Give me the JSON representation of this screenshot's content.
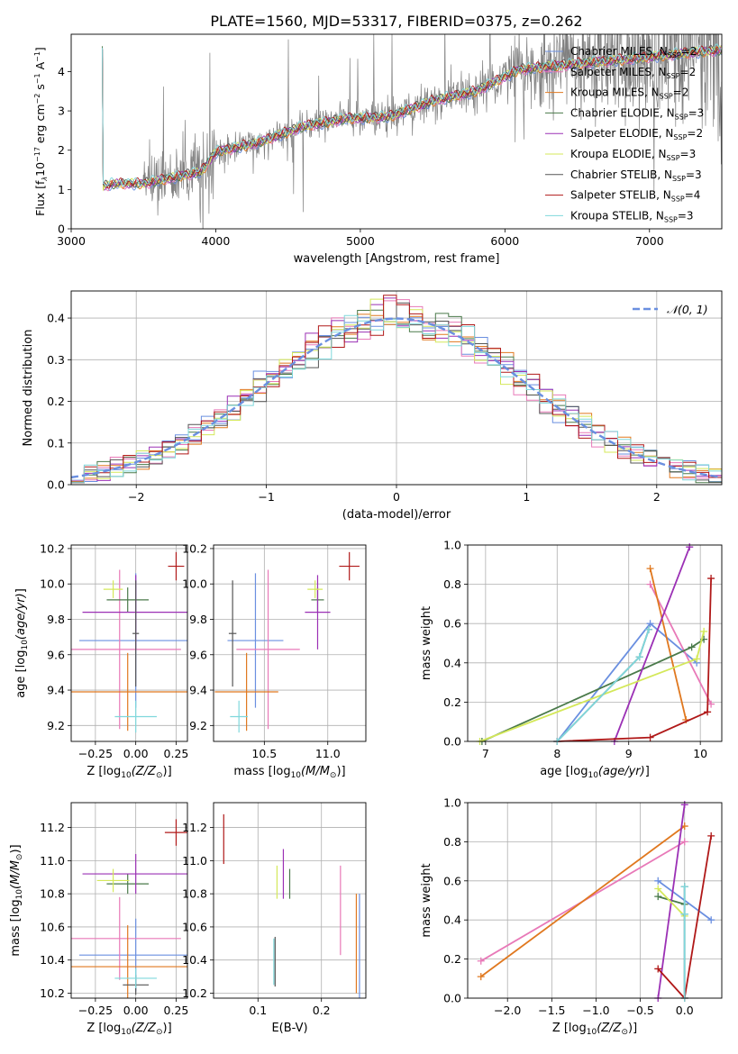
{
  "figure": {
    "title": "PLATE=1560, MJD=53317, FIBERID=0375, z=0.262"
  },
  "colors": {
    "Chabrier MILES": "#6a8fe0",
    "Salpeter MILES": "#e879b8",
    "Kroupa MILES": "#e0781f",
    "Chabrier ELODIE": "#4a7a4a",
    "Salpeter ELODIE": "#9b30b5",
    "Kroupa ELODIE": "#d4e85a",
    "Chabrier STELIB": "#555555",
    "Salpeter STELIB": "#b01818",
    "Kroupa STELIB": "#7fd8dc",
    "data": "#808080",
    "normal": "#6a8fe0"
  },
  "chart_data": [
    {
      "id": "spectrum",
      "type": "line",
      "xlabel": "wavelength [Angstrom, rest frame]",
      "ylabel": "Flux [f_λ 10^-17 erg cm^-2 s^-1 A^-1]",
      "xlim": [
        3000,
        7500
      ],
      "ylim": [
        0,
        4.95
      ],
      "xticks": [
        3000,
        4000,
        5000,
        6000,
        7000
      ],
      "yticks": [
        0,
        1,
        2,
        3,
        4
      ],
      "legend_position": "upper right",
      "legend": [
        {
          "label": "Chabrier MILES, N",
          "sub": "SSP",
          "n": "=2"
        },
        {
          "label": "Salpeter MILES, N",
          "sub": "SSP",
          "n": "=2"
        },
        {
          "label": "Kroupa MILES, N",
          "sub": "SSP",
          "n": "=2"
        },
        {
          "label": "Chabrier ELODIE, N",
          "sub": "SSP",
          "n": "=3"
        },
        {
          "label": "Salpeter ELODIE, N",
          "sub": "SSP",
          "n": "=2"
        },
        {
          "label": "Kroupa ELODIE, N",
          "sub": "SSP",
          "n": "=3"
        },
        {
          "label": "Chabrier STELIB, N",
          "sub": "SSP",
          "n": "=3"
        },
        {
          "label": "Salpeter STELIB, N",
          "sub": "SSP",
          "n": "=4"
        },
        {
          "label": "Kroupa STELIB, N",
          "sub": "SSP",
          "n": "=3"
        }
      ],
      "continuum": [
        [
          3220,
          1.08
        ],
        [
          3300,
          1.15
        ],
        [
          3500,
          1.15
        ],
        [
          3700,
          1.3
        ],
        [
          3900,
          1.45
        ],
        [
          4000,
          1.95
        ],
        [
          4300,
          2.2
        ],
        [
          4600,
          2.6
        ],
        [
          4900,
          2.8
        ],
        [
          5200,
          2.85
        ],
        [
          5500,
          3.25
        ],
        [
          5800,
          3.5
        ],
        [
          6100,
          4.05
        ],
        [
          6500,
          4.2
        ],
        [
          6800,
          4.3
        ],
        [
          7200,
          4.45
        ],
        [
          7500,
          4.55
        ]
      ]
    },
    {
      "id": "residuals",
      "type": "line",
      "xlabel": "(data-model)/error",
      "ylabel": "Normed distribution",
      "xlim": [
        -2.5,
        2.5
      ],
      "ylim": [
        0,
        0.465
      ],
      "xticks": [
        -2,
        -1,
        0,
        1,
        2
      ],
      "yticks": [
        0.0,
        0.1,
        0.2,
        0.3,
        0.4
      ],
      "legend": "𝒩(0, 1)",
      "legend_position": "upper right"
    },
    {
      "id": "age_vs_Z",
      "type": "scatter",
      "xlabel": "Z [log₁₀(Z/Z☉)]",
      "ylabel": "age  [log₁₀(age/yr)]",
      "xlim": [
        -0.4,
        0.32
      ],
      "ylim": [
        9.11,
        10.22
      ],
      "xticks": [
        -0.25,
        0.0,
        0.25
      ],
      "yticks": [
        9.2,
        9.4,
        9.6,
        9.8,
        10.0,
        10.2
      ],
      "points": [
        {
          "series": "Chabrier MILES",
          "x": 0.0,
          "xerr": 0.35,
          "y": 9.68,
          "yerr": 0.38
        },
        {
          "series": "Salpeter MILES",
          "x": -0.1,
          "xerr": 0.38,
          "y": 9.63,
          "yerr": 0.45
        },
        {
          "series": "Kroupa MILES",
          "x": -0.05,
          "xerr": 0.37,
          "y": 9.39,
          "yerr": 0.22
        },
        {
          "series": "Chabrier ELODIE",
          "x": -0.05,
          "xerr": 0.13,
          "y": 9.91,
          "yerr": 0.07
        },
        {
          "series": "Salpeter ELODIE",
          "x": 0.0,
          "xerr": 0.33,
          "y": 9.84,
          "yerr": 0.21
        },
        {
          "series": "Kroupa ELODIE",
          "x": -0.14,
          "xerr": 0.06,
          "y": 9.97,
          "yerr": 0.05
        },
        {
          "series": "Chabrier STELIB",
          "x": 0.0,
          "xerr": 0.02,
          "y": 9.72,
          "yerr": 0.3
        },
        {
          "series": "Salpeter STELIB",
          "x": 0.25,
          "xerr": 0.05,
          "y": 10.1,
          "yerr": 0.08
        },
        {
          "series": "Kroupa STELIB",
          "x": 0.0,
          "xerr": 0.13,
          "y": 9.25,
          "yerr": 0.09
        }
      ]
    },
    {
      "id": "age_vs_mass",
      "type": "scatter",
      "xlabel": "mass [log₁₀(M/M☉)]",
      "xlim": [
        10.1,
        11.3
      ],
      "ylim": [
        9.11,
        10.22
      ],
      "xticks": [
        10.5,
        11.0
      ],
      "yticks": [
        9.2,
        9.4,
        9.6,
        9.8,
        10.0,
        10.2
      ],
      "points": [
        {
          "series": "Chabrier MILES",
          "x": 10.43,
          "xerr": 0.22,
          "y": 9.68,
          "yerr": 0.38
        },
        {
          "series": "Salpeter MILES",
          "x": 10.53,
          "xerr": 0.25,
          "y": 9.63,
          "yerr": 0.45
        },
        {
          "series": "Kroupa MILES",
          "x": 10.36,
          "xerr": 0.25,
          "y": 9.39,
          "yerr": 0.22
        },
        {
          "series": "Chabrier ELODIE",
          "x": 10.92,
          "xerr": 0.05,
          "y": 9.91,
          "yerr": 0.07
        },
        {
          "series": "Salpeter ELODIE",
          "x": 10.92,
          "xerr": 0.1,
          "y": 9.84,
          "yerr": 0.21
        },
        {
          "series": "Kroupa ELODIE",
          "x": 10.9,
          "xerr": 0.06,
          "y": 9.97,
          "yerr": 0.05
        },
        {
          "series": "Chabrier STELIB",
          "x": 10.25,
          "xerr": 0.03,
          "y": 9.72,
          "yerr": 0.3
        },
        {
          "series": "Salpeter STELIB",
          "x": 11.17,
          "xerr": 0.08,
          "y": 10.1,
          "yerr": 0.08
        },
        {
          "series": "Kroupa STELIB",
          "x": 10.3,
          "xerr": 0.07,
          "y": 9.25,
          "yerr": 0.09
        }
      ]
    },
    {
      "id": "weight_vs_age",
      "type": "line",
      "xlabel": "age  [log₁₀(age/yr)]",
      "ylabel": "mass weight",
      "xlim": [
        6.75,
        10.3
      ],
      "ylim": [
        0,
        1
      ],
      "xticks": [
        7,
        8,
        9,
        10
      ],
      "yticks": [
        0.0,
        0.2,
        0.4,
        0.6,
        0.8,
        1.0
      ],
      "series": [
        {
          "name": "Chabrier MILES",
          "x": [
            8.0,
            9.3,
            9.95
          ],
          "y": [
            0.0,
            0.6,
            0.4
          ]
        },
        {
          "name": "Salpeter MILES",
          "x": [
            9.3,
            10.15
          ],
          "y": [
            0.8,
            0.19
          ]
        },
        {
          "name": "Kroupa MILES",
          "x": [
            9.3,
            9.8
          ],
          "y": [
            0.88,
            0.11
          ]
        },
        {
          "name": "Chabrier ELODIE",
          "x": [
            6.95,
            9.88,
            10.05
          ],
          "y": [
            0.0,
            0.48,
            0.52
          ]
        },
        {
          "name": "Salpeter ELODIE",
          "x": [
            8.8,
            9.85
          ],
          "y": [
            0.0,
            0.99
          ]
        },
        {
          "name": "Kroupa ELODIE",
          "x": [
            6.92,
            9.95,
            10.05
          ],
          "y": [
            0.0,
            0.42,
            0.56
          ]
        },
        {
          "name": "Chabrier STELIB",
          "x": [
            8.0,
            9.15,
            9.28
          ],
          "y": [
            0.0,
            0.43,
            0.57
          ]
        },
        {
          "name": "Salpeter STELIB",
          "x": [
            8.0,
            9.3,
            10.1,
            10.15
          ],
          "y": [
            0.0,
            0.02,
            0.15,
            0.83
          ]
        },
        {
          "name": "Kroupa STELIB",
          "x": [
            8.0,
            9.15,
            9.28
          ],
          "y": [
            0.0,
            0.43,
            0.57
          ]
        }
      ]
    },
    {
      "id": "mass_vs_Z",
      "type": "scatter",
      "xlabel": "Z [log₁₀(Z/Z☉)]",
      "ylabel": "mass [log₁₀(M/M☉)]",
      "xlim": [
        -0.4,
        0.32
      ],
      "ylim": [
        10.17,
        11.35
      ],
      "xticks": [
        -0.25,
        0.0,
        0.25
      ],
      "yticks": [
        10.2,
        10.4,
        10.6,
        10.8,
        11.0,
        11.2
      ],
      "points": [
        {
          "series": "Chabrier MILES",
          "x": 0.0,
          "xerr": 0.35,
          "y": 10.43,
          "yerr": 0.22
        },
        {
          "series": "Salpeter MILES",
          "x": -0.1,
          "xerr": 0.38,
          "y": 10.53,
          "yerr": 0.25
        },
        {
          "series": "Kroupa MILES",
          "x": -0.05,
          "xerr": 0.37,
          "y": 10.36,
          "yerr": 0.25
        },
        {
          "series": "Chabrier ELODIE",
          "x": -0.05,
          "xerr": 0.13,
          "y": 10.86,
          "yerr": 0.06
        },
        {
          "series": "Salpeter ELODIE",
          "x": 0.0,
          "xerr": 0.33,
          "y": 10.92,
          "yerr": 0.12
        },
        {
          "series": "Kroupa ELODIE",
          "x": -0.14,
          "xerr": 0.1,
          "y": 10.88,
          "yerr": 0.07
        },
        {
          "series": "Chabrier STELIB",
          "x": 0.0,
          "xerr": 0.08,
          "y": 10.25,
          "yerr": 0.06
        },
        {
          "series": "Salpeter STELIB",
          "x": 0.25,
          "xerr": 0.07,
          "y": 11.17,
          "yerr": 0.08
        },
        {
          "series": "Kroupa STELIB",
          "x": 0.0,
          "xerr": 0.13,
          "y": 10.29,
          "yerr": 0.06
        }
      ]
    },
    {
      "id": "mass_vs_EBV",
      "type": "scatter",
      "xlabel": "E(B-V)",
      "xlim": [
        0.03,
        0.27
      ],
      "ylim": [
        10.17,
        11.35
      ],
      "xticks": [
        0.1,
        0.2
      ],
      "yticks": [
        10.2,
        10.4,
        10.6,
        10.8,
        11.0,
        11.2
      ],
      "points": [
        {
          "series": "Chabrier MILES",
          "x": 0.26,
          "y": 10.45,
          "yerr": 0.35
        },
        {
          "series": "Salpeter MILES",
          "x": 0.23,
          "y": 10.7,
          "yerr": 0.27
        },
        {
          "series": "Kroupa MILES",
          "x": 0.255,
          "y": 10.5,
          "yerr": 0.3
        },
        {
          "series": "Chabrier ELODIE",
          "x": 0.15,
          "y": 10.86,
          "yerr": 0.09
        },
        {
          "series": "Salpeter ELODIE",
          "x": 0.14,
          "y": 10.92,
          "yerr": 0.15
        },
        {
          "series": "Kroupa ELODIE",
          "x": 0.13,
          "y": 10.87,
          "yerr": 0.1
        },
        {
          "series": "Chabrier STELIB",
          "x": 0.127,
          "y": 10.39,
          "yerr": 0.15
        },
        {
          "series": "Salpeter STELIB",
          "x": 0.046,
          "y": 11.13,
          "yerr": 0.15
        },
        {
          "series": "Kroupa STELIB",
          "x": 0.125,
          "y": 10.39,
          "yerr": 0.14
        }
      ]
    },
    {
      "id": "weight_vs_Z",
      "type": "line",
      "xlabel": "Z [log₁₀(Z/Z☉)]",
      "ylabel": "mass weight",
      "xlim": [
        -2.45,
        0.42
      ],
      "ylim": [
        0,
        1
      ],
      "xticks": [
        -2.0,
        -1.5,
        -1.0,
        -0.5,
        0.0
      ],
      "yticks": [
        0.0,
        0.2,
        0.4,
        0.6,
        0.8,
        1.0
      ],
      "series": [
        {
          "name": "Chabrier MILES",
          "x": [
            -0.3,
            0.3
          ],
          "y": [
            0.6,
            0.4
          ]
        },
        {
          "name": "Salpeter MILES",
          "x": [
            -2.3,
            0.0
          ],
          "y": [
            0.19,
            0.8
          ]
        },
        {
          "name": "Kroupa MILES",
          "x": [
            -2.3,
            0.0
          ],
          "y": [
            0.11,
            0.88
          ]
        },
        {
          "name": "Chabrier ELODIE",
          "x": [
            -0.3,
            0.0
          ],
          "y": [
            0.52,
            0.48
          ]
        },
        {
          "name": "Salpeter ELODIE",
          "x": [
            -0.3,
            0.0
          ],
          "y": [
            0.0,
            0.99
          ]
        },
        {
          "name": "Kroupa ELODIE",
          "x": [
            -0.3,
            0.0
          ],
          "y": [
            0.56,
            0.42
          ]
        },
        {
          "name": "Chabrier STELIB",
          "x": [
            0.0,
            0.0,
            0.0
          ],
          "y": [
            0.0,
            0.43,
            0.57
          ]
        },
        {
          "name": "Salpeter STELIB",
          "x": [
            -0.3,
            0.0,
            0.3
          ],
          "y": [
            0.15,
            0.0,
            0.83
          ]
        },
        {
          "name": "Kroupa STELIB",
          "x": [
            0.0,
            0.0,
            0.0
          ],
          "y": [
            0.0,
            0.43,
            0.57
          ]
        }
      ]
    }
  ]
}
